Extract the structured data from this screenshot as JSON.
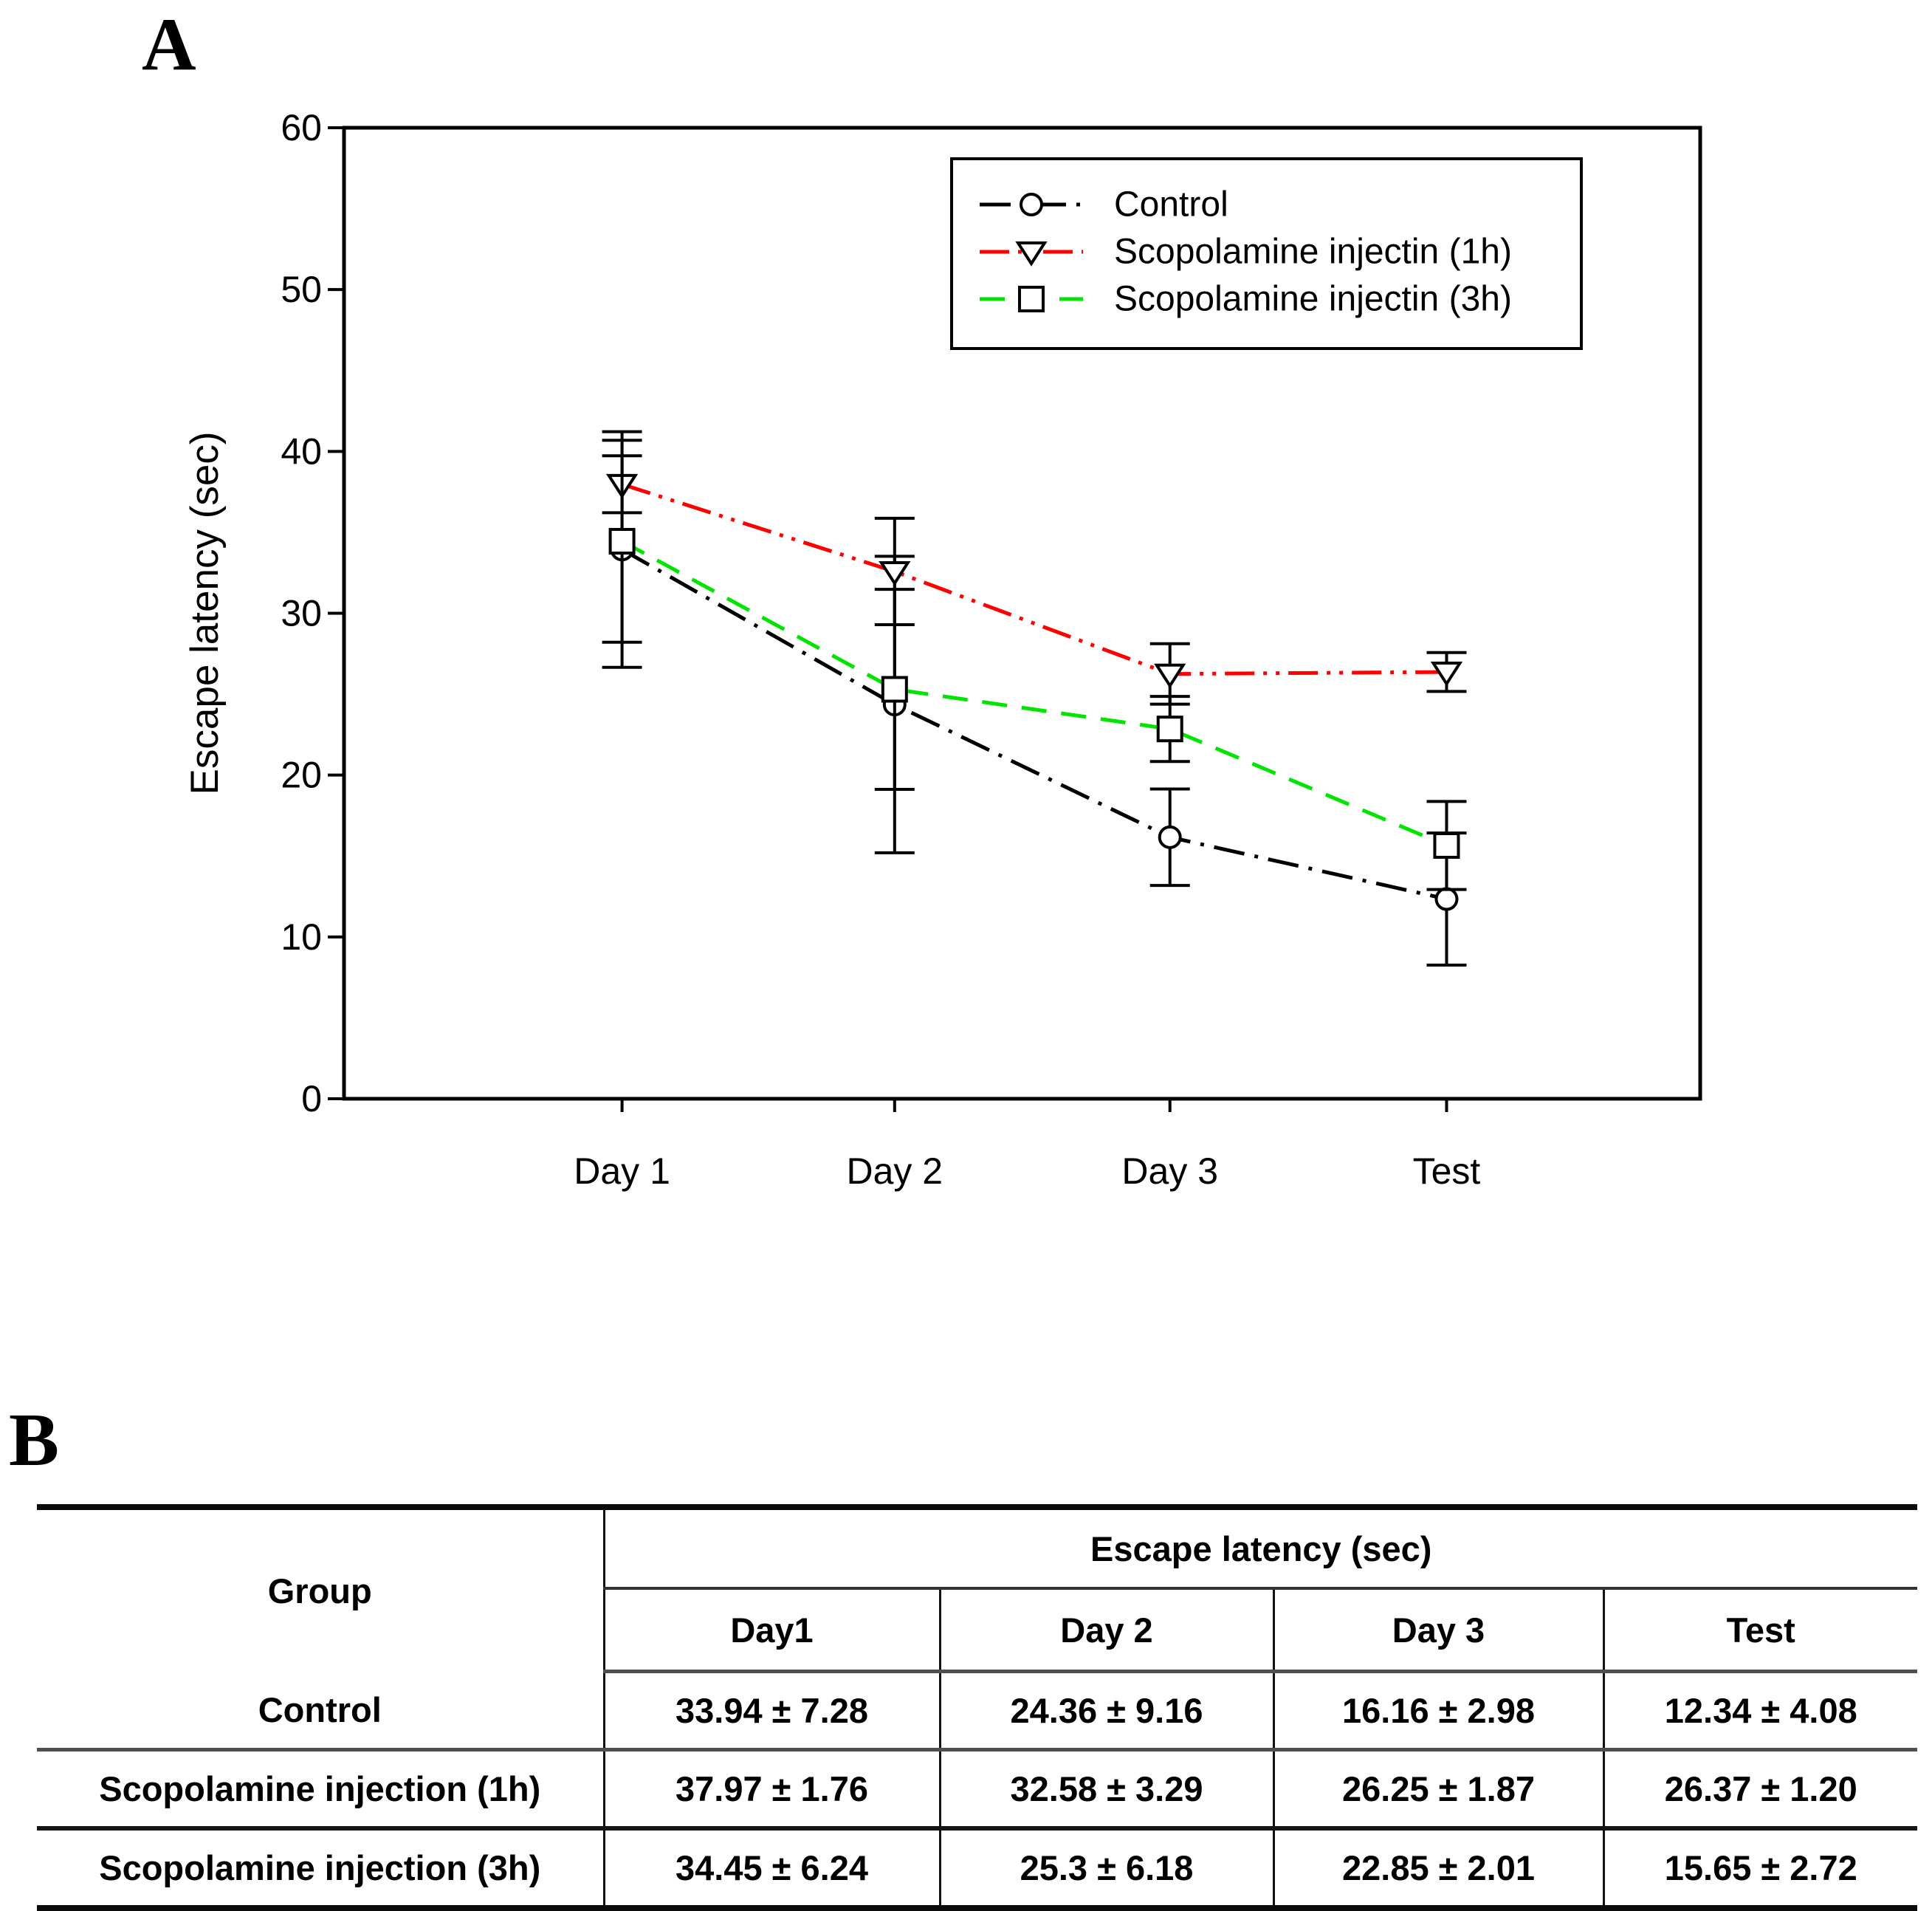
{
  "panels": {
    "a_label": "A",
    "b_label": "B"
  },
  "chart_data": {
    "type": "line",
    "categories": [
      "Day 1",
      "Day 2",
      "Day 3",
      "Test"
    ],
    "series": [
      {
        "name": "Control",
        "color": "#000000",
        "marker": "circle",
        "dash": "dash-dot",
        "means": [
          33.94,
          24.36,
          16.16,
          12.34
        ],
        "sd": [
          7.28,
          9.16,
          2.98,
          4.08
        ]
      },
      {
        "name": "Scopolamine injectin (1h)",
        "color": "#ff0000",
        "marker": "triangle-down",
        "dash": "dash-dot-dot",
        "means": [
          37.97,
          32.58,
          26.25,
          26.37
        ],
        "sd": [
          1.76,
          3.29,
          1.87,
          1.2
        ]
      },
      {
        "name": "Scopolamine injectin (3h)",
        "color": "#00e400",
        "marker": "square",
        "dash": "dash",
        "means": [
          34.45,
          25.3,
          22.85,
          15.65
        ],
        "sd": [
          6.24,
          6.18,
          2.01,
          2.72
        ]
      }
    ],
    "title": "",
    "xlabel": "",
    "ylabel": "Escape latency (sec)",
    "ylim": [
      0,
      60
    ],
    "yticks": [
      0,
      10,
      20,
      30,
      40,
      50,
      60
    ],
    "grid": false,
    "legend_position": "inside-top-right",
    "error_bars": "mean ± sd, black caps both directions"
  },
  "table": {
    "group_header": "Group",
    "span_header": "Escape latency (sec)",
    "col_headers": [
      "Day1",
      "Day 2",
      "Day 3",
      "Test"
    ],
    "rows": [
      {
        "group": "Control",
        "values": [
          "33.94 ± 7.28",
          "24.36 ± 9.16",
          "16.16 ± 2.98",
          "12.34 ± 4.08"
        ]
      },
      {
        "group": "Scopolamine injection (1h)",
        "values": [
          "37.97 ± 1.76",
          "32.58 ± 3.29",
          "26.25 ± 1.87",
          "26.37 ± 1.20"
        ]
      },
      {
        "group": "Scopolamine injection (3h)",
        "values": [
          "34.45 ± 6.24",
          "25.3 ± 6.18",
          "22.85 ± 2.01",
          "15.65 ± 2.72"
        ]
      }
    ]
  }
}
